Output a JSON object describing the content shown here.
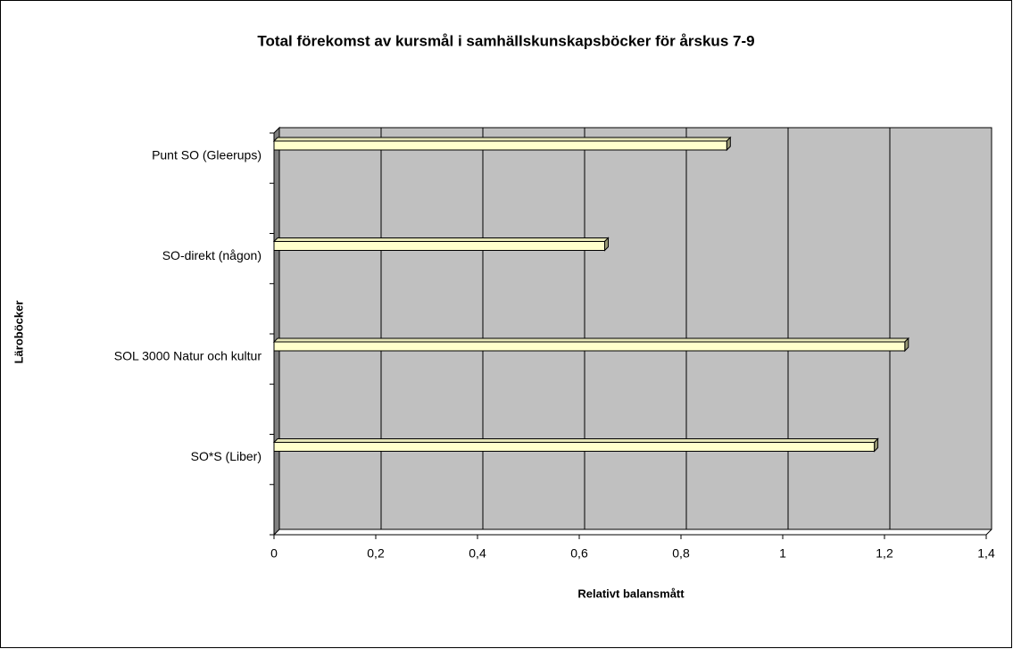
{
  "chart_data": {
    "type": "bar",
    "orientation": "horizontal",
    "title": "Total förekomst av kursmål i samhällskunskapsböcker för årskus 7-9",
    "x_label": "Relativt balansmått",
    "y_label": "Läroböcker",
    "categories": [
      "Punt SO (Gleerups)",
      "SO-direkt (någon)",
      "SOL 3000 Natur och kultur",
      "SO*S (Liber)"
    ],
    "values": [
      0.89,
      0.65,
      1.24,
      1.18
    ],
    "color": "#ffffcc",
    "xlim": [
      0,
      1.4
    ],
    "xticks": [
      0,
      {
        "value": 0.2,
        "label": "0,2"
      },
      {
        "value": 0.4,
        "label": "0,4"
      },
      {
        "value": 0.6,
        "label": "0,6"
      },
      {
        "value": 0.8,
        "label": "0,8"
      },
      1,
      {
        "value": 1.2,
        "label": "1,2"
      },
      {
        "value": 1.4,
        "label": "1,4"
      }
    ],
    "grid": true
  }
}
